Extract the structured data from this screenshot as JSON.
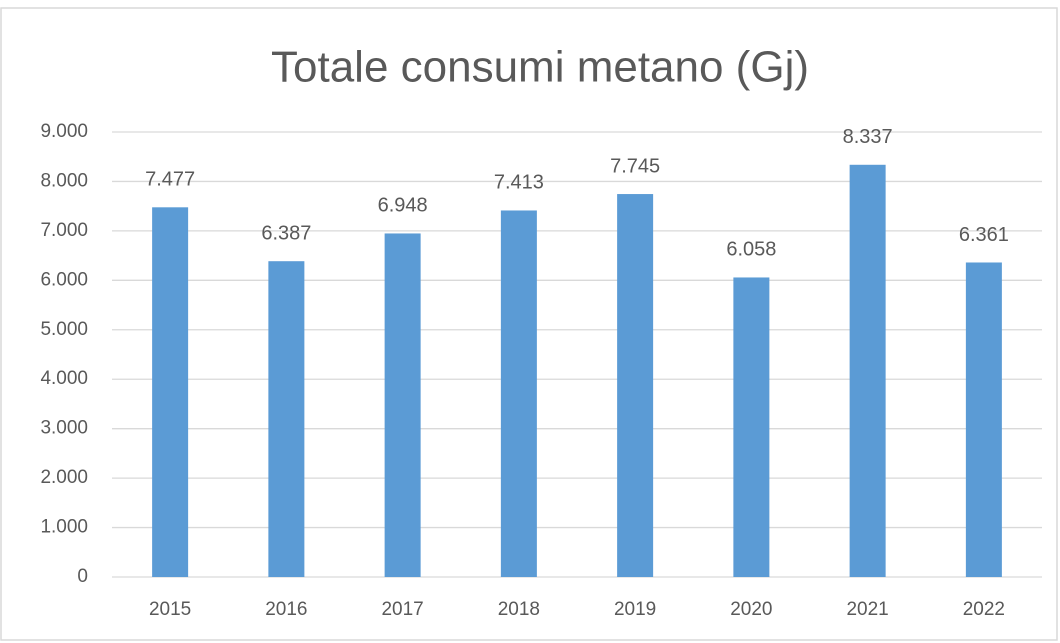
{
  "chart_data": {
    "type": "bar",
    "title": "Totale consumi metano (Gj)",
    "categories": [
      "2015",
      "2016",
      "2017",
      "2018",
      "2019",
      "2020",
      "2021",
      "2022"
    ],
    "values": [
      7477,
      6387,
      6948,
      7413,
      7745,
      6058,
      8337,
      6361
    ],
    "value_labels": [
      "7.477",
      "6.387",
      "6.948",
      "7.413",
      "7.745",
      "6.058",
      "8.337",
      "6.361"
    ],
    "color": "#5b9bd5",
    "ylim": [
      0,
      9000
    ],
    "yticks": [
      0,
      {
        "value": 1000,
        "label": "1.000"
      },
      {
        "value": 2000,
        "label": "2.000"
      },
      {
        "value": 3000,
        "label": "3.000"
      },
      {
        "value": 4000,
        "label": "4.000"
      },
      {
        "value": 5000,
        "label": "5.000"
      },
      {
        "value": 6000,
        "label": "6.000"
      },
      {
        "value": 7000,
        "label": "7.000"
      },
      {
        "value": 8000,
        "label": "8.000"
      },
      {
        "value": 9000,
        "label": "9.000"
      }
    ],
    "grid": true
  }
}
